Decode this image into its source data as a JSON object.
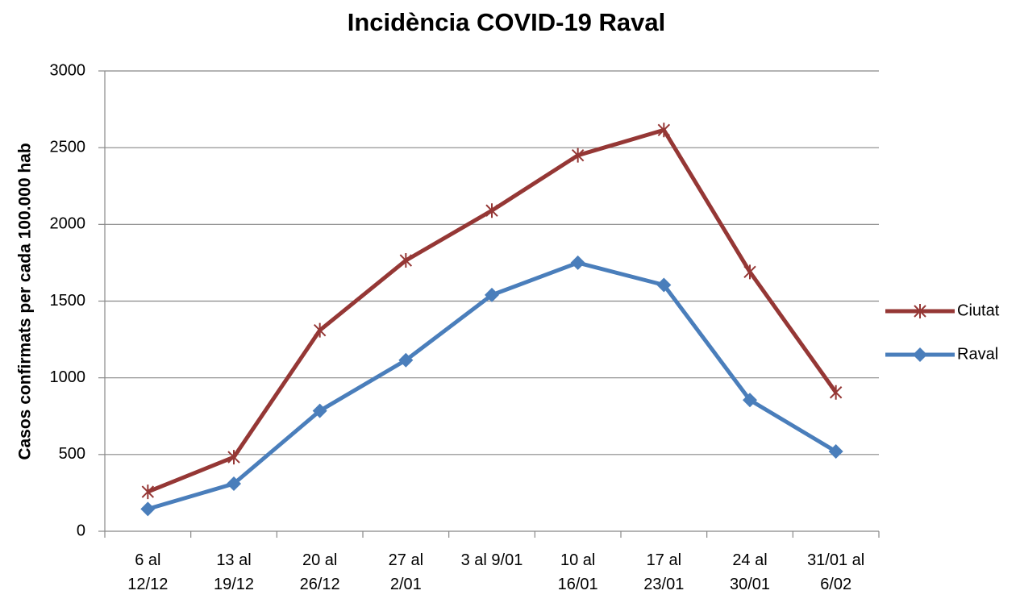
{
  "chart_data": {
    "type": "line",
    "title": "Incidència COVID-19 Raval",
    "y_label": "Casos confirmats per cada 100.000 hab",
    "categories": [
      "6 al\n12/12",
      "13 al\n19/12",
      "20 al\n26/12",
      "27 al\n2/01",
      "3 al 9/01",
      "10 al\n16/01",
      "17 al\n23/01",
      "24 al\n30/01",
      "31/01 al\n6/02"
    ],
    "series": [
      {
        "name": "Ciutat",
        "color": "#953735",
        "marker": "star",
        "values": [
          257,
          483,
          1310,
          1765,
          2090,
          2450,
          2615,
          1690,
          905
        ]
      },
      {
        "name": "Raval",
        "color": "#4a7ebb",
        "marker": "diamond",
        "values": [
          145,
          310,
          785,
          1115,
          1540,
          1750,
          1605,
          855,
          520
        ]
      }
    ],
    "ylim": [
      0,
      3000
    ],
    "yticks": [
      0,
      500,
      1000,
      1500,
      2000,
      2500,
      3000
    ],
    "grid": true,
    "legend": "right"
  }
}
